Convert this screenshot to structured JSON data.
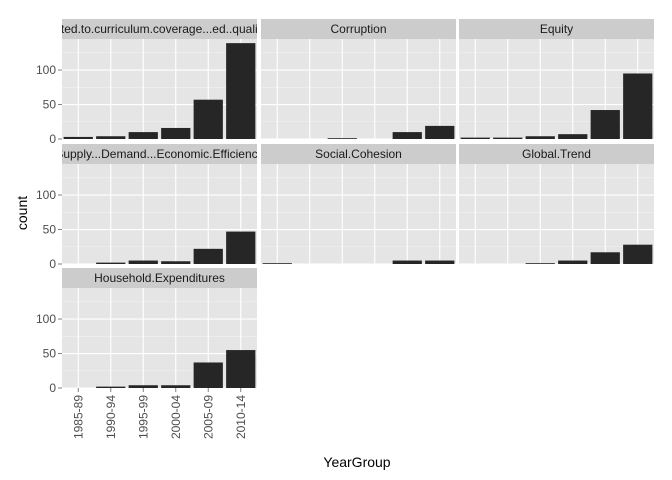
{
  "chart_data": {
    "type": "bar",
    "layout": "faceted (3 columns)",
    "xlabel": "YearGroup",
    "ylabel": "count",
    "categories": [
      "1985-89",
      "1990-94",
      "1995-99",
      "2000-04",
      "2005-09",
      "2010-14"
    ],
    "ylim": [
      0,
      145
    ],
    "yticks": [
      0,
      50,
      100
    ],
    "grid": true,
    "bar_color": "#262626",
    "panel_bg": "#e5e5e5",
    "strip_bg": "#cccccc",
    "gridline_color": "#ffffff",
    "facets": [
      {
        "name": "Related.to.curriculum.coverage...ed..quality...e",
        "values": [
          3,
          4,
          10,
          16,
          57,
          139
        ]
      },
      {
        "name": "Corruption",
        "values": [
          0,
          0,
          1,
          0,
          10,
          19
        ]
      },
      {
        "name": "Equity",
        "values": [
          2,
          2,
          4,
          7,
          42,
          95
        ]
      },
      {
        "name": "Supply...Demand...Economic.Efficiency",
        "values": [
          0,
          2,
          5,
          4,
          22,
          47
        ]
      },
      {
        "name": "Social.Cohesion",
        "values": [
          1,
          0,
          0,
          0,
          5,
          5
        ]
      },
      {
        "name": "Global.Trend",
        "values": [
          0,
          0,
          1,
          5,
          17,
          28
        ]
      },
      {
        "name": "Household.Expenditures",
        "values": [
          0,
          2,
          4,
          4,
          37,
          55
        ]
      }
    ]
  }
}
